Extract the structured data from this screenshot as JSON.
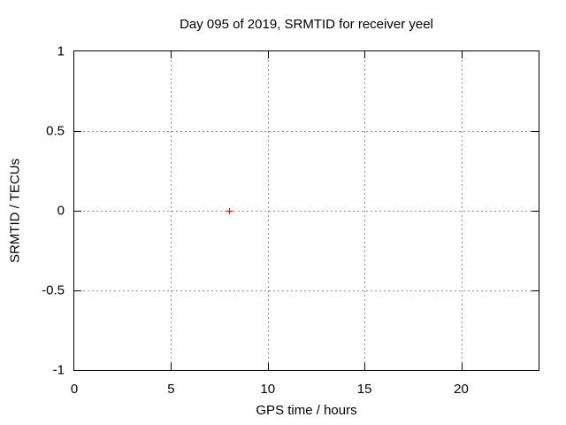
{
  "chart_data": {
    "type": "scatter",
    "title": "Day 095 of 2019, SRMTID for receiver yeel",
    "xlabel": "GPS time / hours",
    "ylabel": "SRMTID / TECUs",
    "xlim": [
      0,
      24
    ],
    "ylim": [
      -1,
      1
    ],
    "xticks": [
      0,
      5,
      10,
      15,
      20
    ],
    "yticks": [
      -1,
      -0.5,
      0,
      0.5,
      1
    ],
    "grid": true,
    "legend": false,
    "colors": {
      "marker": "#ff0000",
      "grid": "#8e8e8e",
      "border": "#000000",
      "background": "#ffffff"
    },
    "series": [
      {
        "name": "SRMTID",
        "marker": "plus",
        "color": "#ff0000",
        "points": [
          [
            8,
            0
          ]
        ]
      }
    ]
  }
}
